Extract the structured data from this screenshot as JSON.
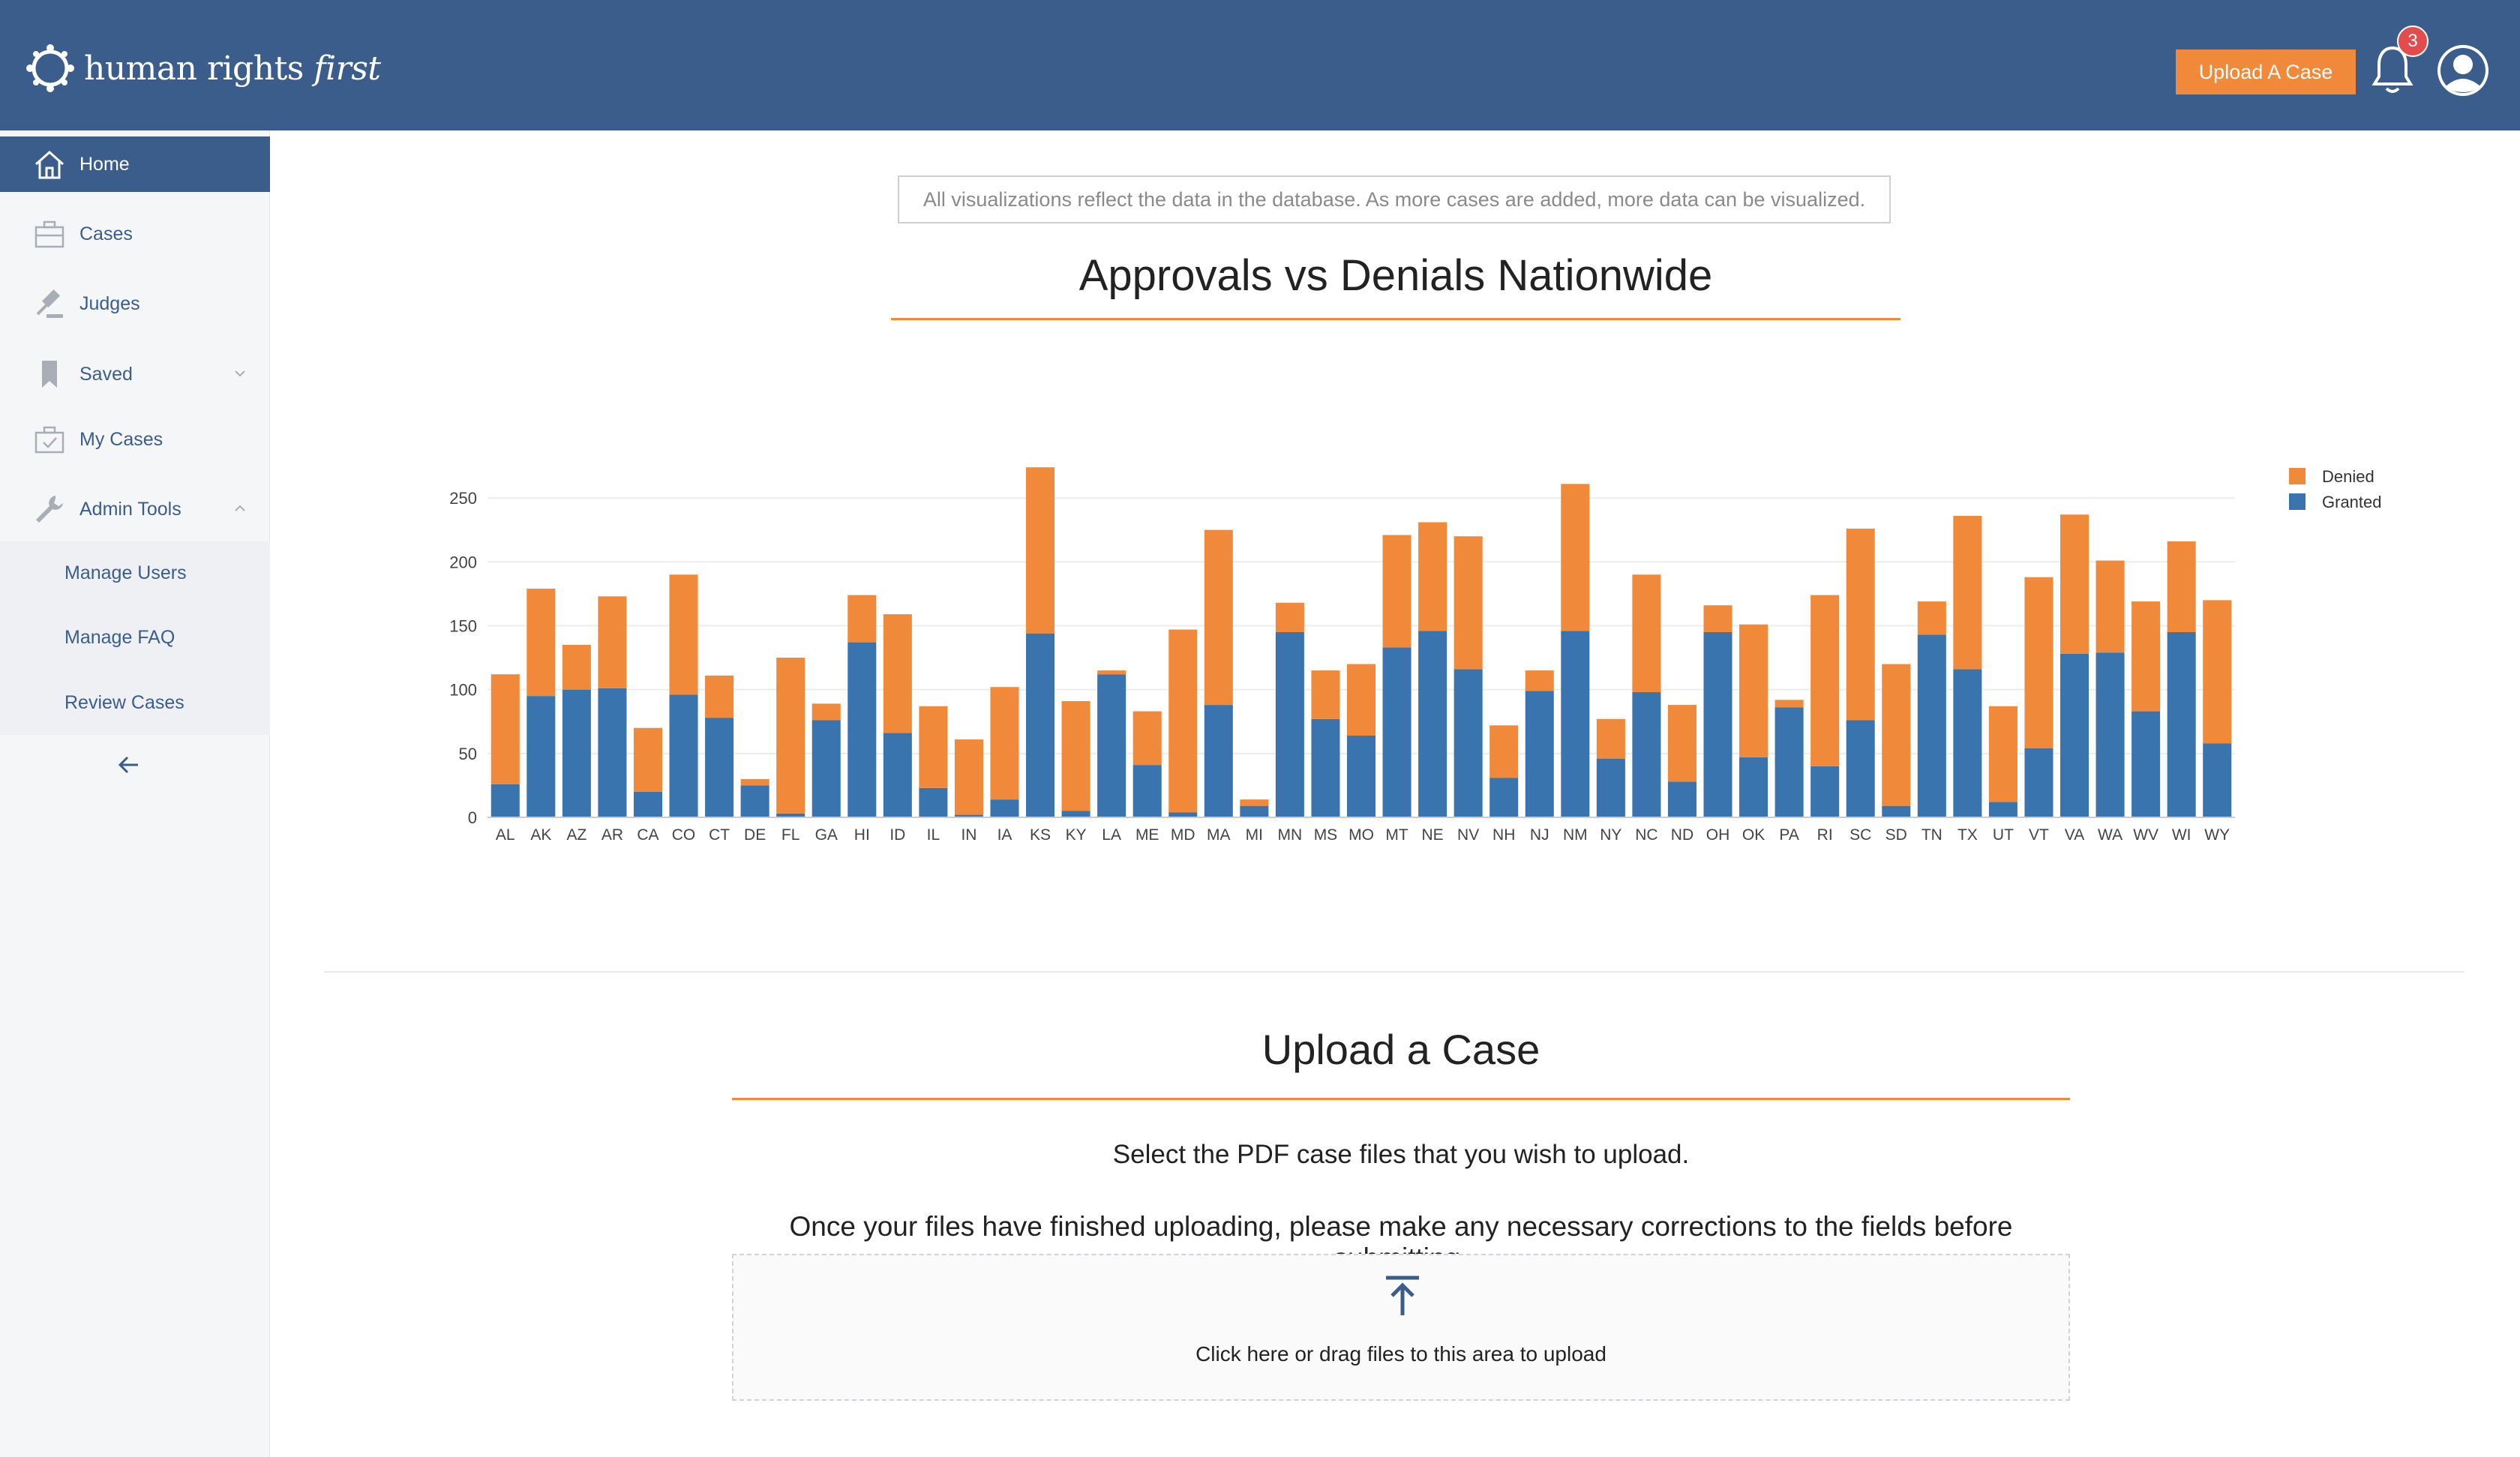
{
  "header": {
    "logo_prefix": "human rights",
    "logo_suffix": "first",
    "upload_button": "Upload A Case",
    "notification_count": "3",
    "accent": "#f0893a",
    "brand": "#3a5d8c"
  },
  "sidebar": {
    "items": [
      {
        "label": "Home",
        "icon": "home-icon"
      },
      {
        "label": "Cases",
        "icon": "briefcase-icon"
      },
      {
        "label": "Judges",
        "icon": "gavel-icon"
      },
      {
        "label": "Saved",
        "icon": "bookmark-icon"
      },
      {
        "label": "My Cases",
        "icon": "checked-briefcase-icon"
      },
      {
        "label": "Admin Tools",
        "icon": "wrench-icon"
      }
    ],
    "admin_subitems": [
      "Manage Users",
      "Manage FAQ",
      "Review Cases"
    ]
  },
  "main": {
    "notice": "All visualizations reflect the data in the database. As more cases are added, more data can be visualized.",
    "chart_title": "Approvals vs Denials Nationwide",
    "upload": {
      "title": "Upload a Case",
      "line1": "Select the PDF case files that you wish to upload.",
      "line2": "Once your files have finished uploading, please make any necessary corrections to the fields before submitting.",
      "dropzone_text": "Click here or drag files to this area to upload"
    }
  },
  "chart_data": {
    "type": "bar",
    "stacked": true,
    "categories": [
      "AL",
      "AK",
      "AZ",
      "AR",
      "CA",
      "CO",
      "CT",
      "DE",
      "FL",
      "GA",
      "HI",
      "ID",
      "IL",
      "IN",
      "IA",
      "KS",
      "KY",
      "LA",
      "ME",
      "MD",
      "MA",
      "MI",
      "MN",
      "MS",
      "MO",
      "MT",
      "NE",
      "NV",
      "NH",
      "NJ",
      "NM",
      "NY",
      "NC",
      "ND",
      "OH",
      "OK",
      "PA",
      "RI",
      "SC",
      "SD",
      "TN",
      "TX",
      "UT",
      "VT",
      "VA",
      "WA",
      "WV",
      "WI",
      "WY"
    ],
    "series": [
      {
        "name": "Granted",
        "color": "#3a74ae",
        "values": [
          26,
          95,
          100,
          101,
          20,
          96,
          78,
          25,
          3,
          76,
          137,
          66,
          23,
          2,
          14,
          144,
          5,
          112,
          41,
          4,
          88,
          9,
          145,
          77,
          64,
          133,
          146,
          116,
          31,
          99,
          146,
          46,
          98,
          28,
          145,
          47,
          86,
          40,
          76,
          9,
          143,
          116,
          12,
          54,
          128,
          129,
          83,
          145,
          58
        ]
      },
      {
        "name": "Denied",
        "color": "#f0893a",
        "values": [
          86,
          84,
          35,
          72,
          50,
          94,
          33,
          5,
          122,
          13,
          37,
          93,
          64,
          59,
          88,
          130,
          86,
          3,
          42,
          143,
          137,
          5,
          23,
          38,
          56,
          88,
          85,
          104,
          41,
          16,
          115,
          31,
          92,
          60,
          21,
          104,
          6,
          134,
          150,
          111,
          26,
          120,
          75,
          134,
          109,
          72,
          86,
          71,
          112
        ]
      }
    ],
    "ylim": [
      0,
      270
    ],
    "yticks": [
      0,
      50,
      100,
      150,
      200,
      250
    ],
    "legend": "top-right",
    "grid": true
  }
}
